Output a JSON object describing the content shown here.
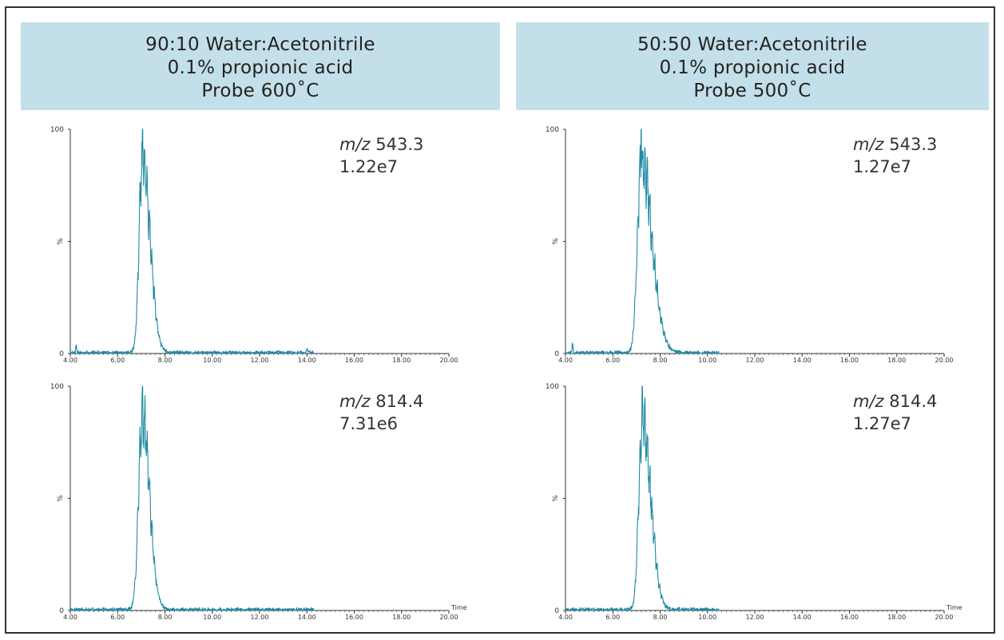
{
  "panels": [
    {
      "header": [
        "90:10 Water:Acetonitrile",
        "0.1% propionic acid",
        "Probe 600˚C"
      ]
    },
    {
      "header": [
        "50:50 Water:Acetonitrile",
        "0.1% propionic acid",
        "Probe 500˚C"
      ]
    }
  ],
  "colors": {
    "trace": "#1f8aa5",
    "header_bg": "#c3dfe9",
    "axis": "#333333"
  },
  "chart_data": [
    {
      "type": "line",
      "panel": "left-top",
      "annotation": {
        "mz_prefix": "m/z",
        "mz": "543.3",
        "intensity": "1.22e7"
      },
      "xlim": [
        4.0,
        20.0
      ],
      "ylim": [
        0,
        100
      ],
      "xticks": [
        "4.00",
        "6.00",
        "8.00",
        "10.00",
        "12.00",
        "14.00",
        "16.00",
        "18.00",
        "20.00"
      ],
      "yticks": [
        "0",
        "%",
        "100"
      ],
      "xlabel": "",
      "trace_end": 14.3,
      "peak": {
        "center": 7.05,
        "height": 100,
        "width_left": 0.14,
        "width_right": 0.32
      },
      "minor_bumps": [
        [
          4.25,
          3
        ],
        [
          14.0,
          2
        ]
      ]
    },
    {
      "type": "line",
      "panel": "right-top",
      "annotation": {
        "mz_prefix": "m/z",
        "mz": "543.3",
        "intensity": "1.27e7"
      },
      "xlim": [
        4.0,
        20.0
      ],
      "ylim": [
        0,
        100
      ],
      "xticks": [
        "4.00",
        "6.00",
        "8.00",
        "10.00",
        "12.00",
        "14.00",
        "16.00",
        "18.00",
        "20.00"
      ],
      "yticks": [
        "0",
        "%",
        "100"
      ],
      "xlabel": "",
      "trace_end": 10.5,
      "peak": {
        "center": 7.2,
        "height": 100,
        "width_left": 0.16,
        "width_right": 0.45
      },
      "minor_bumps": [
        [
          4.3,
          4
        ]
      ]
    },
    {
      "type": "line",
      "panel": "left-bottom",
      "annotation": {
        "mz_prefix": "m/z",
        "mz": "814.4",
        "intensity": "7.31e6"
      },
      "xlim": [
        4.0,
        20.0
      ],
      "ylim": [
        0,
        100
      ],
      "xticks": [
        "4.00",
        "6.00",
        "8.00",
        "10.00",
        "12.00",
        "14.00",
        "16.00",
        "18.00",
        "20.00"
      ],
      "yticks": [
        "0",
        "%",
        "100"
      ],
      "xlabel": "Time",
      "trace_end": 14.3,
      "peak": {
        "center": 7.05,
        "height": 100,
        "width_left": 0.16,
        "width_right": 0.3
      },
      "minor_bumps": []
    },
    {
      "type": "line",
      "panel": "right-bottom",
      "annotation": {
        "mz_prefix": "m/z",
        "mz": "814.4",
        "intensity": "1.27e7"
      },
      "xlim": [
        4.0,
        20.0
      ],
      "ylim": [
        0,
        100
      ],
      "xticks": [
        "4.00",
        "6.00",
        "8.00",
        "10.00",
        "12.00",
        "14.00",
        "16.00",
        "18.00",
        "20.00"
      ],
      "yticks": [
        "0",
        "%",
        "100"
      ],
      "xlabel": "Time",
      "trace_end": 10.5,
      "peak": {
        "center": 7.25,
        "height": 100,
        "width_left": 0.15,
        "width_right": 0.35
      },
      "minor_bumps": []
    }
  ]
}
